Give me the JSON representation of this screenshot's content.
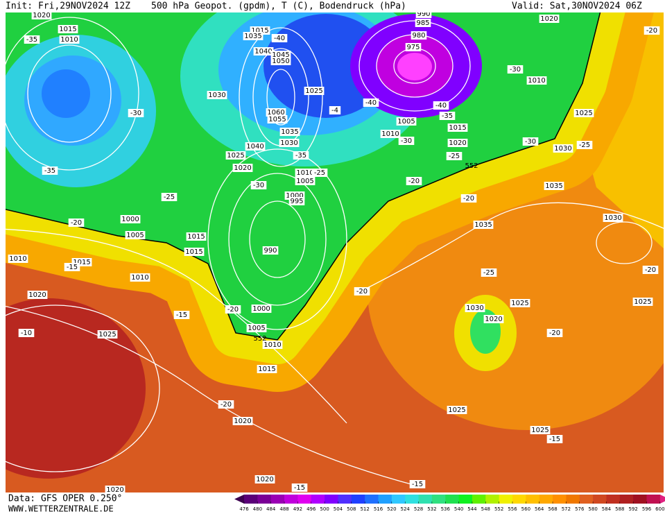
{
  "header": {
    "init": "Init: Fri,29NOV2024 12Z",
    "title": "500 hPa Geopot. (gpdm), T (C), Bodendruck (hPa)",
    "valid": "Valid: Sat,30NOV2024 06Z"
  },
  "footer": {
    "source": "Data: GFS OPER 0.250°",
    "website": "WWW.WETTERZENTRALE.DE"
  },
  "isobar_labels": [
    "1020",
    "1015",
    "1010",
    "1015",
    "1035",
    "1040",
    "1045",
    "1050",
    "1030",
    "1025",
    "1060",
    "1055",
    "1035",
    "1030",
    "1040",
    "1025",
    "1020",
    "1010",
    "1005",
    "1000",
    "995",
    "990",
    "1000",
    "1005",
    "1010",
    "1015",
    "1020",
    "1020",
    "1020",
    "1025",
    "1020",
    "1010",
    "1015",
    "1010",
    "1005",
    "1000",
    "1015",
    "1015",
    "990",
    "985",
    "980",
    "975",
    "1005",
    "1010",
    "1015",
    "1020",
    "1020",
    "1010",
    "1025",
    "1030",
    "1035",
    "1035",
    "1030",
    "1025",
    "1025",
    "1030",
    "1020",
    "1025",
    "1025"
  ],
  "temperature_labels": [
    "-35",
    "-40",
    "-30",
    "-4",
    "-40",
    "-40",
    "-35",
    "-30",
    "-30",
    "-35",
    "-25",
    "-30",
    "-35",
    "-25",
    "-20",
    "-20",
    "-25",
    "-30",
    "-25",
    "-20",
    "-20",
    "-15",
    "-15",
    "-10",
    "-20",
    "-20",
    "-25",
    "-20",
    "-20",
    "-20",
    "-15",
    "-15",
    "-15"
  ],
  "height_labels": [
    "552",
    "552"
  ],
  "colorbar": {
    "ticks": [
      476,
      480,
      484,
      488,
      492,
      496,
      500,
      504,
      508,
      512,
      516,
      520,
      524,
      528,
      532,
      536,
      540,
      544,
      548,
      552,
      556,
      560,
      564,
      568,
      572,
      576,
      580,
      584,
      588,
      592,
      596,
      600
    ],
    "colors": [
      "#3c0050",
      "#5a0078",
      "#7a0096",
      "#9a00b4",
      "#c000dc",
      "#e000f0",
      "#b000ff",
      "#8000ff",
      "#5030ff",
      "#2040ff",
      "#2070ff",
      "#20a0ff",
      "#30c8ff",
      "#30e0e0",
      "#30e0b0",
      "#30e080",
      "#20e050",
      "#10f020",
      "#60f000",
      "#b0f000",
      "#f0f000",
      "#ffd800",
      "#ffbf00",
      "#ffa800",
      "#ff9000",
      "#f07800",
      "#e06020",
      "#d04820",
      "#c03020",
      "#b02020",
      "#a01020",
      "#c01050",
      "#e02080"
    ]
  }
}
